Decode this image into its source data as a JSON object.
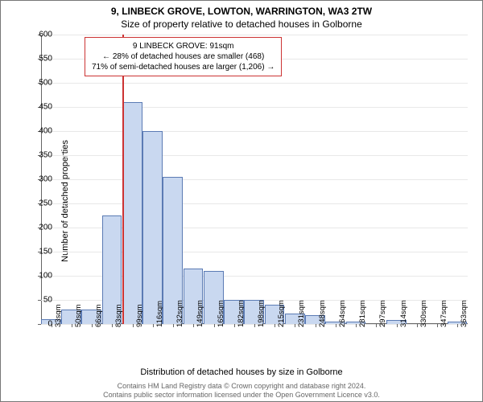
{
  "title": {
    "line1": "9, LINBECK GROVE, LOWTON, WARRINGTON, WA3 2TW",
    "line2": "Size of property relative to detached houses in Golborne"
  },
  "ylabel": "Number of detached properties",
  "xlabel": "Distribution of detached houses by size in Golborne",
  "footer": {
    "line1": "Contains HM Land Registry data © Crown copyright and database right 2024.",
    "line2": "Contains public sector information licensed under the Open Government Licence v3.0."
  },
  "chart": {
    "type": "histogram",
    "ylim": [
      0,
      600
    ],
    "yticks": [
      0,
      50,
      100,
      150,
      200,
      250,
      300,
      350,
      400,
      450,
      500,
      550,
      600
    ],
    "bar_fill": "#c9d8f0",
    "bar_stroke": "#5b7bb4",
    "background": "#ffffff",
    "grid_color": "#e8e8e8",
    "refline": {
      "x_index": 3.5,
      "color": "#cc3333"
    },
    "bins": [
      {
        "label": "33sqm",
        "value": 10
      },
      {
        "label": "50sqm",
        "value": 30
      },
      {
        "label": "66sqm",
        "value": 30
      },
      {
        "label": "83sqm",
        "value": 225
      },
      {
        "label": "99sqm",
        "value": 460
      },
      {
        "label": "116sqm",
        "value": 400
      },
      {
        "label": "132sqm",
        "value": 305
      },
      {
        "label": "149sqm",
        "value": 115
      },
      {
        "label": "165sqm",
        "value": 110
      },
      {
        "label": "182sqm",
        "value": 50
      },
      {
        "label": "198sqm",
        "value": 50
      },
      {
        "label": "215sqm",
        "value": 40
      },
      {
        "label": "231sqm",
        "value": 22
      },
      {
        "label": "248sqm",
        "value": 18
      },
      {
        "label": "264sqm",
        "value": 5
      },
      {
        "label": "281sqm",
        "value": 5
      },
      {
        "label": "297sqm",
        "value": 0
      },
      {
        "label": "314sqm",
        "value": 8
      },
      {
        "label": "330sqm",
        "value": 0
      },
      {
        "label": "347sqm",
        "value": 0
      },
      {
        "label": "363sqm",
        "value": 5
      }
    ]
  },
  "annotation": {
    "line1": "9 LINBECK GROVE: 91sqm",
    "line2": "← 28% of detached houses are smaller (468)",
    "line3": "71% of semi-detached houses are larger (1,206) →",
    "border_color": "#cc3333",
    "bg_color": "#ffffff",
    "fontsize": 10
  }
}
